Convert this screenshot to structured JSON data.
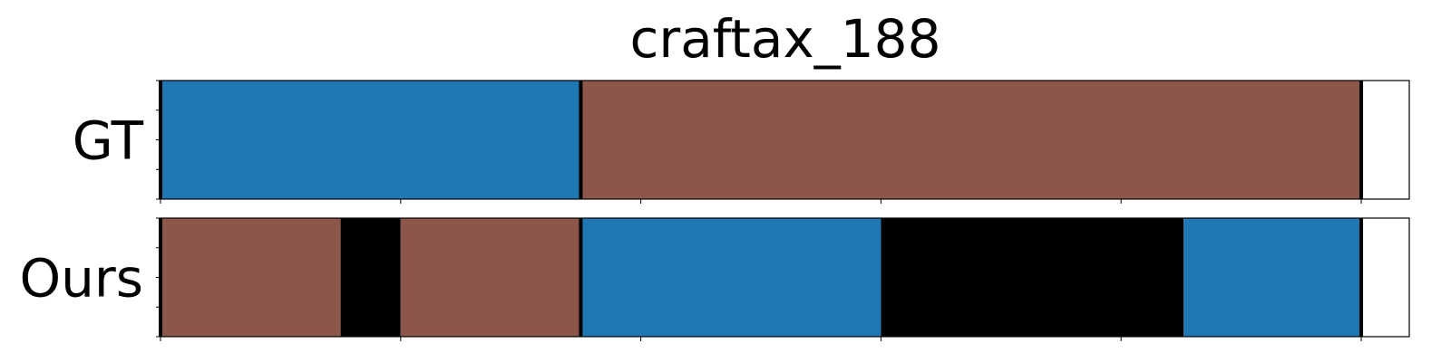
{
  "chart_data": {
    "type": "bar",
    "title": "craftax_188",
    "xlim": [
      0,
      2600
    ],
    "x_ticks": [
      0,
      500,
      1000,
      1500,
      2000,
      2500
    ],
    "x_tick_labels_shown": false,
    "y_tick_labels_shown": false,
    "rows": [
      {
        "label": "GT",
        "segments": [
          {
            "start": 0,
            "end": 875,
            "color": "#1f77b4"
          },
          {
            "start": 875,
            "end": 2500,
            "color": "#8c564b"
          }
        ],
        "boundaries": [
          0,
          875,
          2500
        ]
      },
      {
        "label": "Ours",
        "segments": [
          {
            "start": 0,
            "end": 375,
            "color": "#8c564b"
          },
          {
            "start": 375,
            "end": 500,
            "color": "#000000"
          },
          {
            "start": 500,
            "end": 875,
            "color": "#8c564b"
          },
          {
            "start": 875,
            "end": 1500,
            "color": "#1f77b4"
          },
          {
            "start": 1500,
            "end": 2130,
            "color": "#000000"
          },
          {
            "start": 2130,
            "end": 2500,
            "color": "#1f77b4"
          }
        ],
        "boundaries": [
          0,
          875,
          2500
        ]
      }
    ]
  }
}
